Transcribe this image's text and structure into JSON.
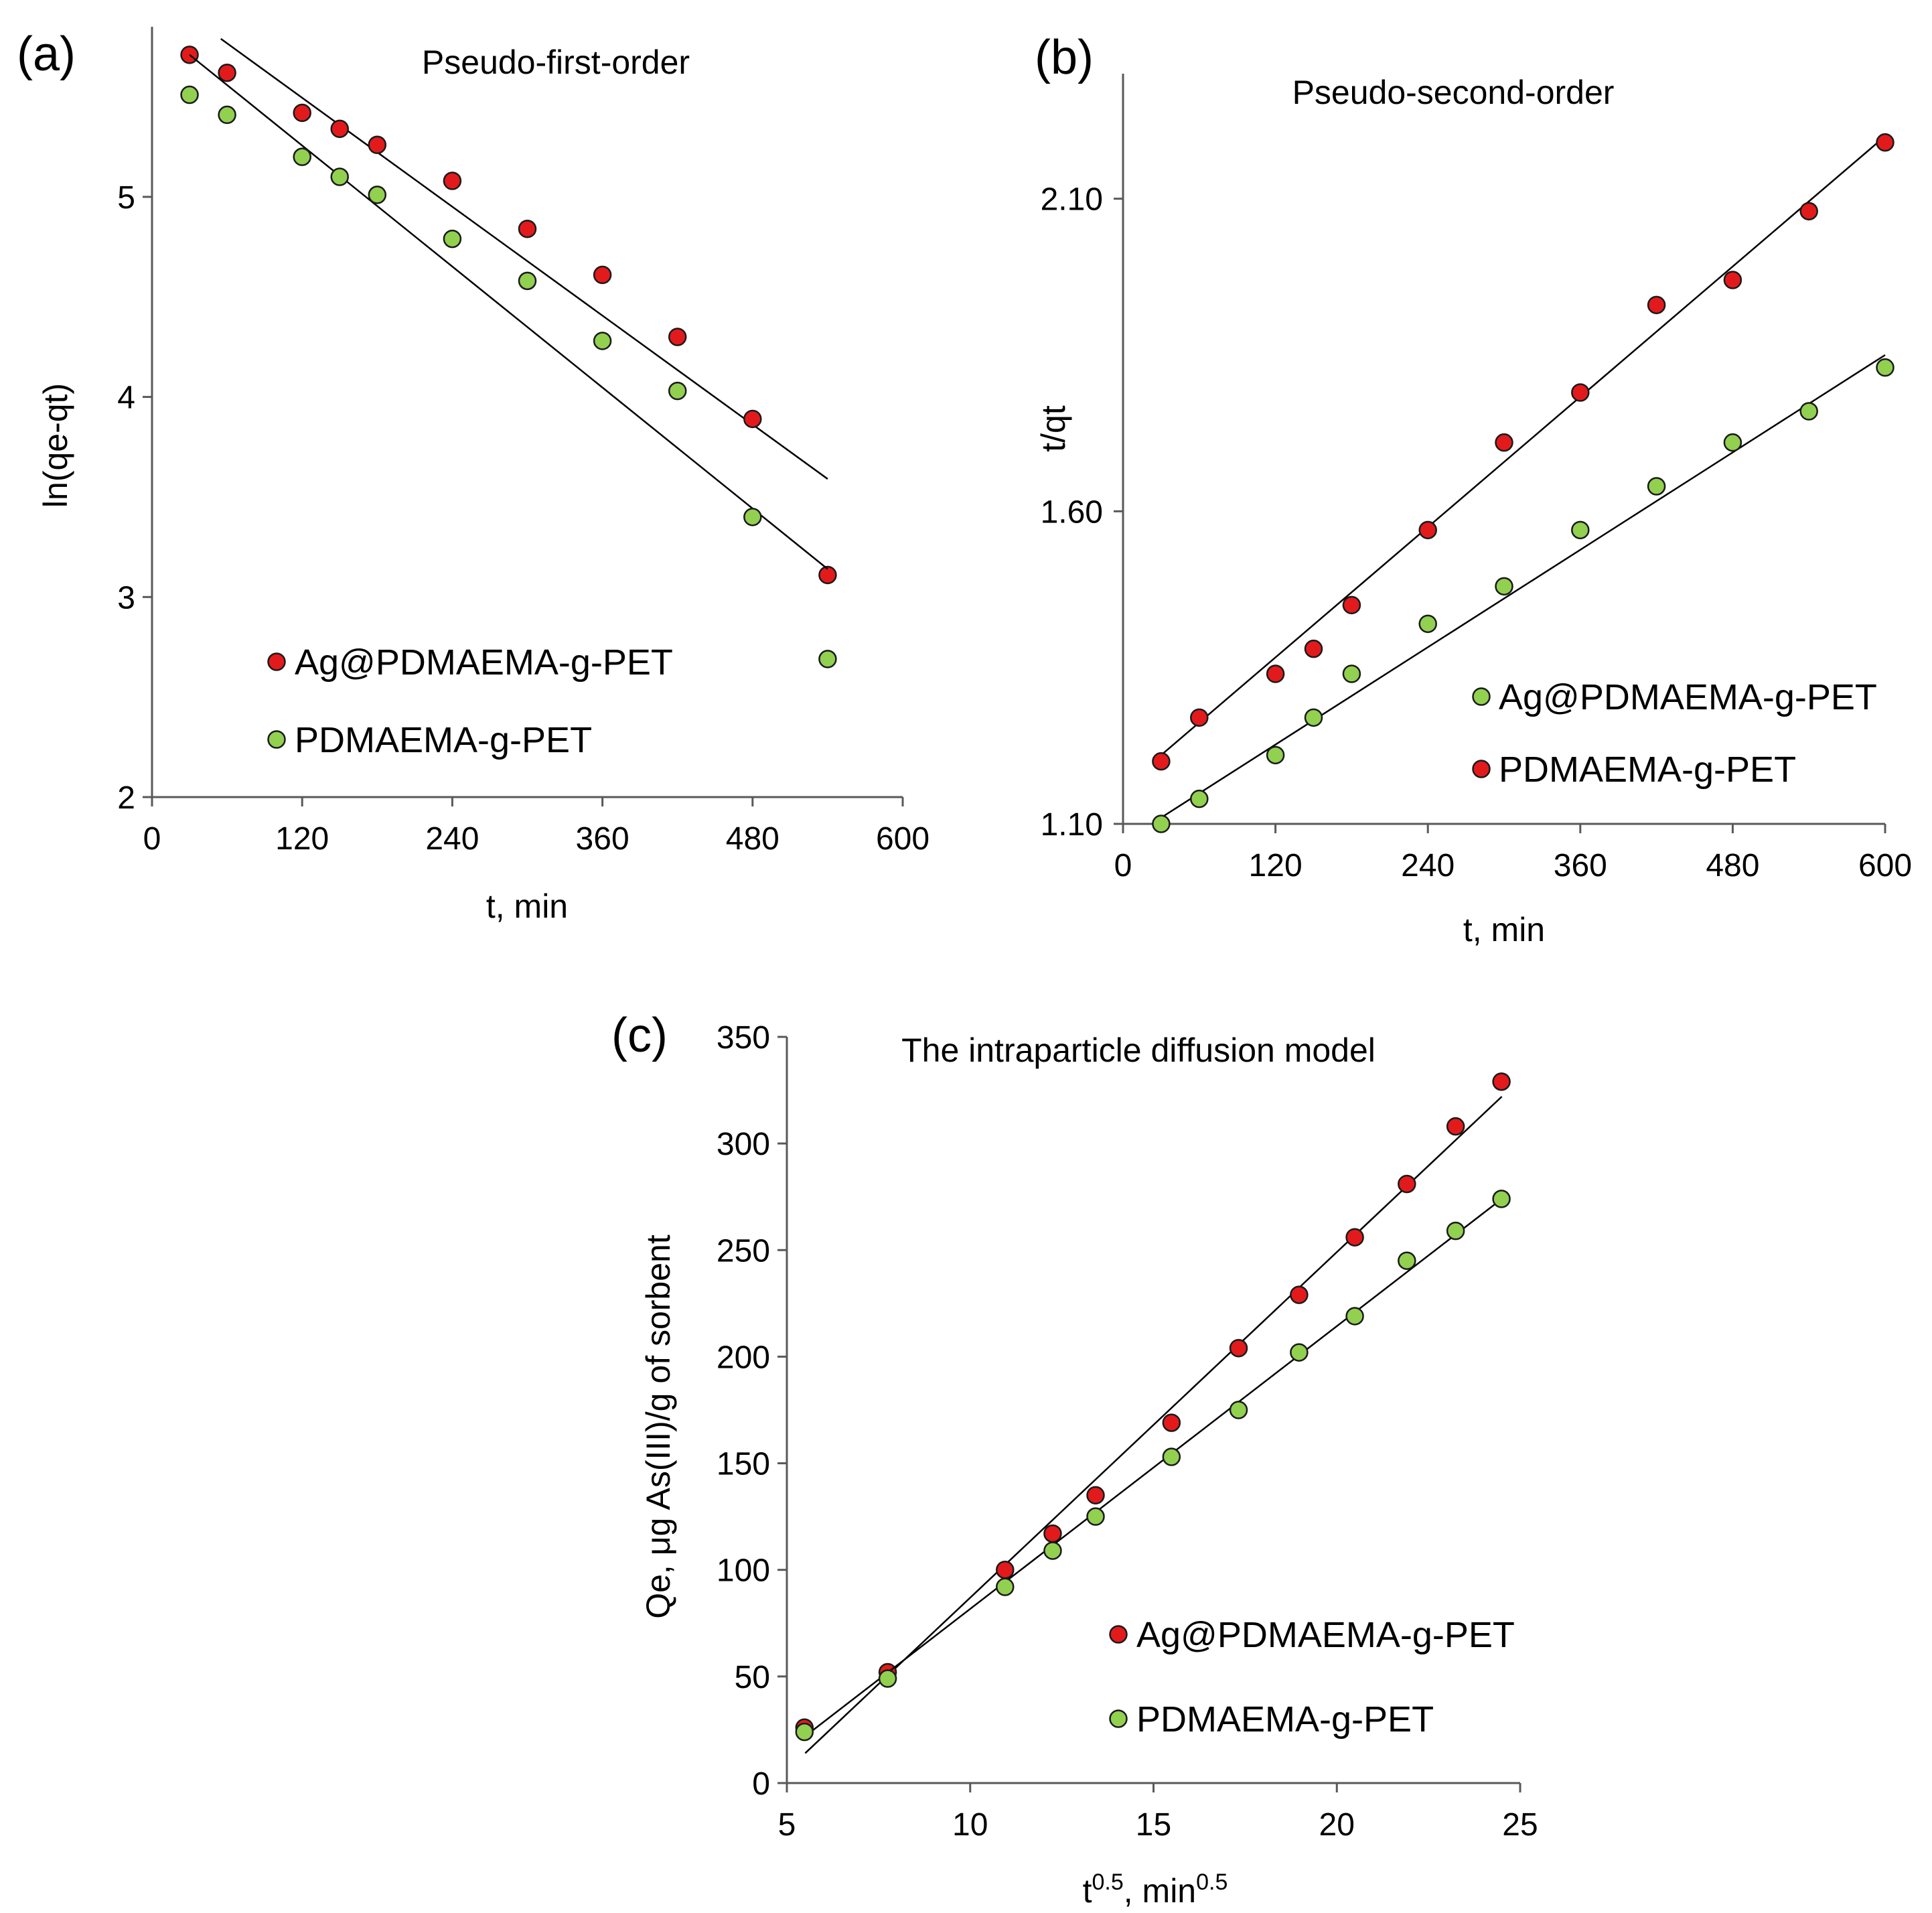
{
  "chart_data": [
    {
      "type": "scatter",
      "panel": "(a)",
      "title": "Pseudo-first-order",
      "xlabel": "t,  min",
      "ylabel": "ln(qe-qt)",
      "xlim": [
        0,
        600
      ],
      "ylim": [
        2,
        5.85
      ],
      "xticks": [
        0,
        120,
        240,
        360,
        480,
        600
      ],
      "yticks": [
        2,
        3,
        4,
        5
      ],
      "xtick_labels": [
        "0",
        "120",
        "240",
        "360",
        "480",
        "600"
      ],
      "ytick_labels": [
        "2",
        "3",
        "4",
        "5"
      ],
      "legend": [
        "Ag@PDMAEMA-g-PET",
        "PDMAEMA-g-PET"
      ],
      "legend_position": "bottom-center",
      "series": [
        {
          "name": "Ag@PDMAEMA-g-PET",
          "color": "#e31a1c",
          "x": [
            30,
            60,
            120,
            150,
            180,
            240,
            300,
            360,
            420,
            480,
            540
          ],
          "y": [
            5.71,
            5.62,
            5.42,
            5.34,
            5.26,
            5.08,
            4.84,
            4.61,
            4.3,
            3.89,
            3.11
          ],
          "fit": {
            "x": [
              55,
              540
            ],
            "y": [
              5.79,
              3.59
            ]
          }
        },
        {
          "name": "PDMAEMA-g-PET",
          "color": "#92d050",
          "x": [
            30,
            60,
            120,
            150,
            180,
            240,
            300,
            360,
            420,
            480,
            540
          ],
          "y": [
            5.51,
            5.41,
            5.2,
            5.1,
            5.01,
            4.79,
            4.58,
            4.28,
            4.03,
            3.4,
            2.69
          ],
          "fit": {
            "x": [
              30,
              540
            ],
            "y": [
              5.71,
              3.14
            ]
          }
        }
      ]
    },
    {
      "type": "scatter",
      "panel": "(b)",
      "title": "Pseudo-second-order",
      "xlabel": "t,  min",
      "ylabel": "t/qt",
      "xlim": [
        0,
        600
      ],
      "ylim": [
        1.1,
        2.3
      ],
      "xticks": [
        0,
        120,
        240,
        360,
        480,
        600
      ],
      "yticks": [
        1.1,
        1.6,
        2.1
      ],
      "xtick_labels": [
        "0",
        "120",
        "240",
        "360",
        "480",
        "600"
      ],
      "ytick_labels": [
        "1.10",
        "1.60",
        "2.10"
      ],
      "legend": [
        "Ag@PDMAEMA-g-PET",
        "PDMAEMA-g-PET"
      ],
      "legend_position": "bottom-right",
      "series": [
        {
          "name": "Ag@PDMAEMA-g-PET",
          "color": "#92d050",
          "x": [
            30,
            60,
            120,
            150,
            180,
            240,
            300,
            360,
            420,
            480,
            540,
            600
          ],
          "y": [
            1.1,
            1.14,
            1.21,
            1.27,
            1.34,
            1.42,
            1.48,
            1.57,
            1.64,
            1.71,
            1.76,
            1.83
          ],
          "fit": {
            "x": [
              30,
              600
            ],
            "y": [
              1.11,
              1.85
            ]
          }
        },
        {
          "name": "PDMAEMA-g-PET",
          "color": "#e31a1c",
          "x": [
            30,
            60,
            120,
            150,
            180,
            240,
            300,
            360,
            420,
            480,
            540,
            600
          ],
          "y": [
            1.2,
            1.27,
            1.34,
            1.38,
            1.45,
            1.57,
            1.71,
            1.79,
            1.93,
            1.97,
            2.08,
            2.19
          ],
          "fit": {
            "x": [
              30,
              600
            ],
            "y": [
              1.21,
              2.2
            ]
          }
        }
      ]
    },
    {
      "type": "scatter",
      "panel": "(c)",
      "title": "The intraparticle diffusion model",
      "xlabel": "t",
      "xlabel_sup": "0.5",
      "xlabel_mid": ", min",
      "xlabel_sup2": "0.5",
      "ylabel": "Qe, μg As(III)/g of sorbent",
      "xlim": [
        5,
        25
      ],
      "ylim": [
        0,
        350
      ],
      "xticks": [
        5,
        10,
        15,
        20,
        25
      ],
      "yticks": [
        0,
        50,
        100,
        150,
        200,
        250,
        300,
        350
      ],
      "xtick_labels": [
        "5",
        "10",
        "15",
        "20",
        "25"
      ],
      "ytick_labels": [
        "0",
        "50",
        "100",
        "150",
        "200",
        "250",
        "300",
        "350"
      ],
      "legend": [
        "Ag@PDMAEMA-g-PET",
        "PDMAEMA-g-PET"
      ],
      "legend_position": "bottom-right",
      "series": [
        {
          "name": "Ag@PDMAEMA-g-PET",
          "color": "#e31a1c",
          "x": [
            5.48,
            7.75,
            10.95,
            12.25,
            13.42,
            15.49,
            17.32,
            18.97,
            20.49,
            21.91,
            23.24,
            24.49
          ],
          "y": [
            26,
            52,
            100,
            117,
            135,
            169,
            204,
            229,
            256,
            281,
            308,
            329
          ],
          "fit": {
            "x": [
              5.5,
              24.5
            ],
            "y": [
              14,
              322
            ]
          }
        },
        {
          "name": "PDMAEMA-g-PET",
          "color": "#92d050",
          "x": [
            5.48,
            7.75,
            10.95,
            12.25,
            13.42,
            15.49,
            17.32,
            18.97,
            20.49,
            21.91,
            23.24,
            24.49
          ],
          "y": [
            24,
            49,
            92,
            109,
            125,
            153,
            175,
            202,
            219,
            245,
            259,
            274
          ],
          "fit": {
            "x": [
              5.5,
              24.5
            ],
            "y": [
              22,
              274
            ]
          }
        }
      ]
    }
  ]
}
